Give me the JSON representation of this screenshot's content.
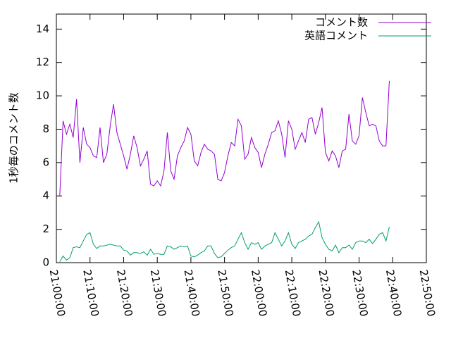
{
  "chart_data": {
    "type": "line",
    "ylabel": "1秒毎のコメント数",
    "x": [
      "21:01:00",
      "21:02:00",
      "21:03:00",
      "21:04:00",
      "21:05:00",
      "21:06:00",
      "21:07:00",
      "21:08:00",
      "21:09:00",
      "21:10:00",
      "21:11:00",
      "21:12:00",
      "21:13:00",
      "21:14:00",
      "21:15:00",
      "21:16:00",
      "21:17:00",
      "21:18:00",
      "21:19:00",
      "21:20:00",
      "21:21:00",
      "21:22:00",
      "21:23:00",
      "21:24:00",
      "21:25:00",
      "21:26:00",
      "21:27:00",
      "21:28:00",
      "21:29:00",
      "21:30:00",
      "21:31:00",
      "21:32:00",
      "21:33:00",
      "21:34:00",
      "21:35:00",
      "21:36:00",
      "21:37:00",
      "21:38:00",
      "21:39:00",
      "21:40:00",
      "21:41:00",
      "21:42:00",
      "21:43:00",
      "21:44:00",
      "21:45:00",
      "21:46:00",
      "21:47:00",
      "21:48:00",
      "21:49:00",
      "21:50:00",
      "21:51:00",
      "21:52:00",
      "21:53:00",
      "21:54:00",
      "21:55:00",
      "21:56:00",
      "21:57:00",
      "21:58:00",
      "21:59:00",
      "22:00:00",
      "22:01:00",
      "22:02:00",
      "22:03:00",
      "22:04:00",
      "22:05:00",
      "22:06:00",
      "22:07:00",
      "22:08:00",
      "22:09:00",
      "22:10:00",
      "22:11:00",
      "22:12:00",
      "22:13:00",
      "22:14:00",
      "22:15:00",
      "22:16:00",
      "22:17:00",
      "22:18:00",
      "22:19:00",
      "22:20:00",
      "22:21:00",
      "22:22:00",
      "22:23:00",
      "22:24:00",
      "22:25:00",
      "22:26:00",
      "22:27:00",
      "22:28:00",
      "22:29:00",
      "22:30:00",
      "22:31:00",
      "22:32:00",
      "22:33:00",
      "22:34:00",
      "22:35:00",
      "22:36:00",
      "22:37:00",
      "22:38:00",
      "22:39:00"
    ],
    "series": [
      {
        "name": "コメント数",
        "color": "#9400d3",
        "values": [
          4.0,
          8.5,
          7.7,
          8.3,
          7.5,
          9.8,
          6.0,
          8.1,
          7.1,
          6.9,
          6.4,
          6.3,
          8.1,
          6.0,
          6.5,
          8.2,
          9.5,
          7.8,
          7.1,
          6.4,
          5.6,
          6.5,
          7.6,
          6.9,
          5.8,
          6.2,
          6.7,
          4.7,
          4.6,
          4.9,
          4.6,
          5.5,
          7.8,
          5.5,
          5.0,
          6.4,
          6.9,
          7.3,
          8.1,
          7.7,
          6.1,
          5.8,
          6.6,
          7.1,
          6.8,
          6.7,
          6.5,
          5.0,
          4.9,
          5.4,
          6.4,
          7.2,
          7.0,
          8.6,
          8.2,
          6.2,
          6.5,
          7.5,
          6.9,
          6.6,
          5.7,
          6.5,
          7.1,
          7.8,
          7.9,
          8.5,
          7.7,
          6.3,
          8.5,
          8.0,
          6.8,
          7.3,
          7.8,
          7.2,
          8.6,
          8.7,
          7.7,
          8.4,
          9.3,
          6.6,
          6.1,
          6.7,
          6.4,
          5.7,
          6.7,
          6.8,
          8.9,
          7.3,
          7.1,
          7.6,
          9.9,
          9.0,
          8.2,
          8.3,
          8.2,
          7.3,
          7.0,
          7.0,
          10.9
        ]
      },
      {
        "name": "英語コメント",
        "color": "#009e73",
        "values": [
          0.05,
          0.4,
          0.15,
          0.3,
          0.9,
          0.95,
          0.9,
          1.3,
          1.7,
          1.8,
          1.1,
          0.85,
          1.0,
          1.0,
          1.05,
          1.1,
          1.05,
          1.0,
          1.0,
          0.75,
          0.7,
          0.45,
          0.6,
          0.6,
          0.55,
          0.65,
          0.45,
          0.8,
          0.5,
          0.55,
          0.5,
          0.5,
          1.0,
          0.95,
          0.8,
          0.9,
          1.0,
          0.95,
          1.0,
          0.4,
          0.35,
          0.45,
          0.6,
          0.7,
          1.0,
          1.0,
          0.55,
          0.3,
          0.35,
          0.55,
          0.75,
          0.9,
          1.0,
          1.4,
          1.8,
          1.2,
          0.8,
          1.2,
          1.1,
          1.2,
          0.8,
          1.0,
          1.1,
          1.2,
          1.8,
          1.4,
          1.0,
          1.3,
          1.8,
          1.1,
          0.85,
          1.2,
          1.3,
          1.4,
          1.6,
          1.7,
          2.1,
          2.45,
          1.5,
          1.1,
          0.8,
          0.7,
          1.05,
          0.6,
          0.9,
          0.9,
          1.05,
          0.8,
          1.2,
          1.3,
          1.3,
          1.2,
          1.4,
          1.15,
          1.4,
          1.7,
          1.8,
          1.3,
          2.15
        ]
      }
    ],
    "xlim": [
      "21:00:00",
      "22:50:00"
    ],
    "xticks": [
      "21:00:00",
      "21:10:00",
      "21:20:00",
      "21:30:00",
      "21:40:00",
      "21:50:00",
      "22:00:00",
      "22:10:00",
      "22:20:00",
      "22:30:00",
      "22:40:00",
      "22:50:00"
    ],
    "ylim": [
      0,
      14.9
    ],
    "yticks": [
      0,
      2,
      4,
      6,
      8,
      10,
      12,
      14
    ],
    "legend": "top-right"
  }
}
